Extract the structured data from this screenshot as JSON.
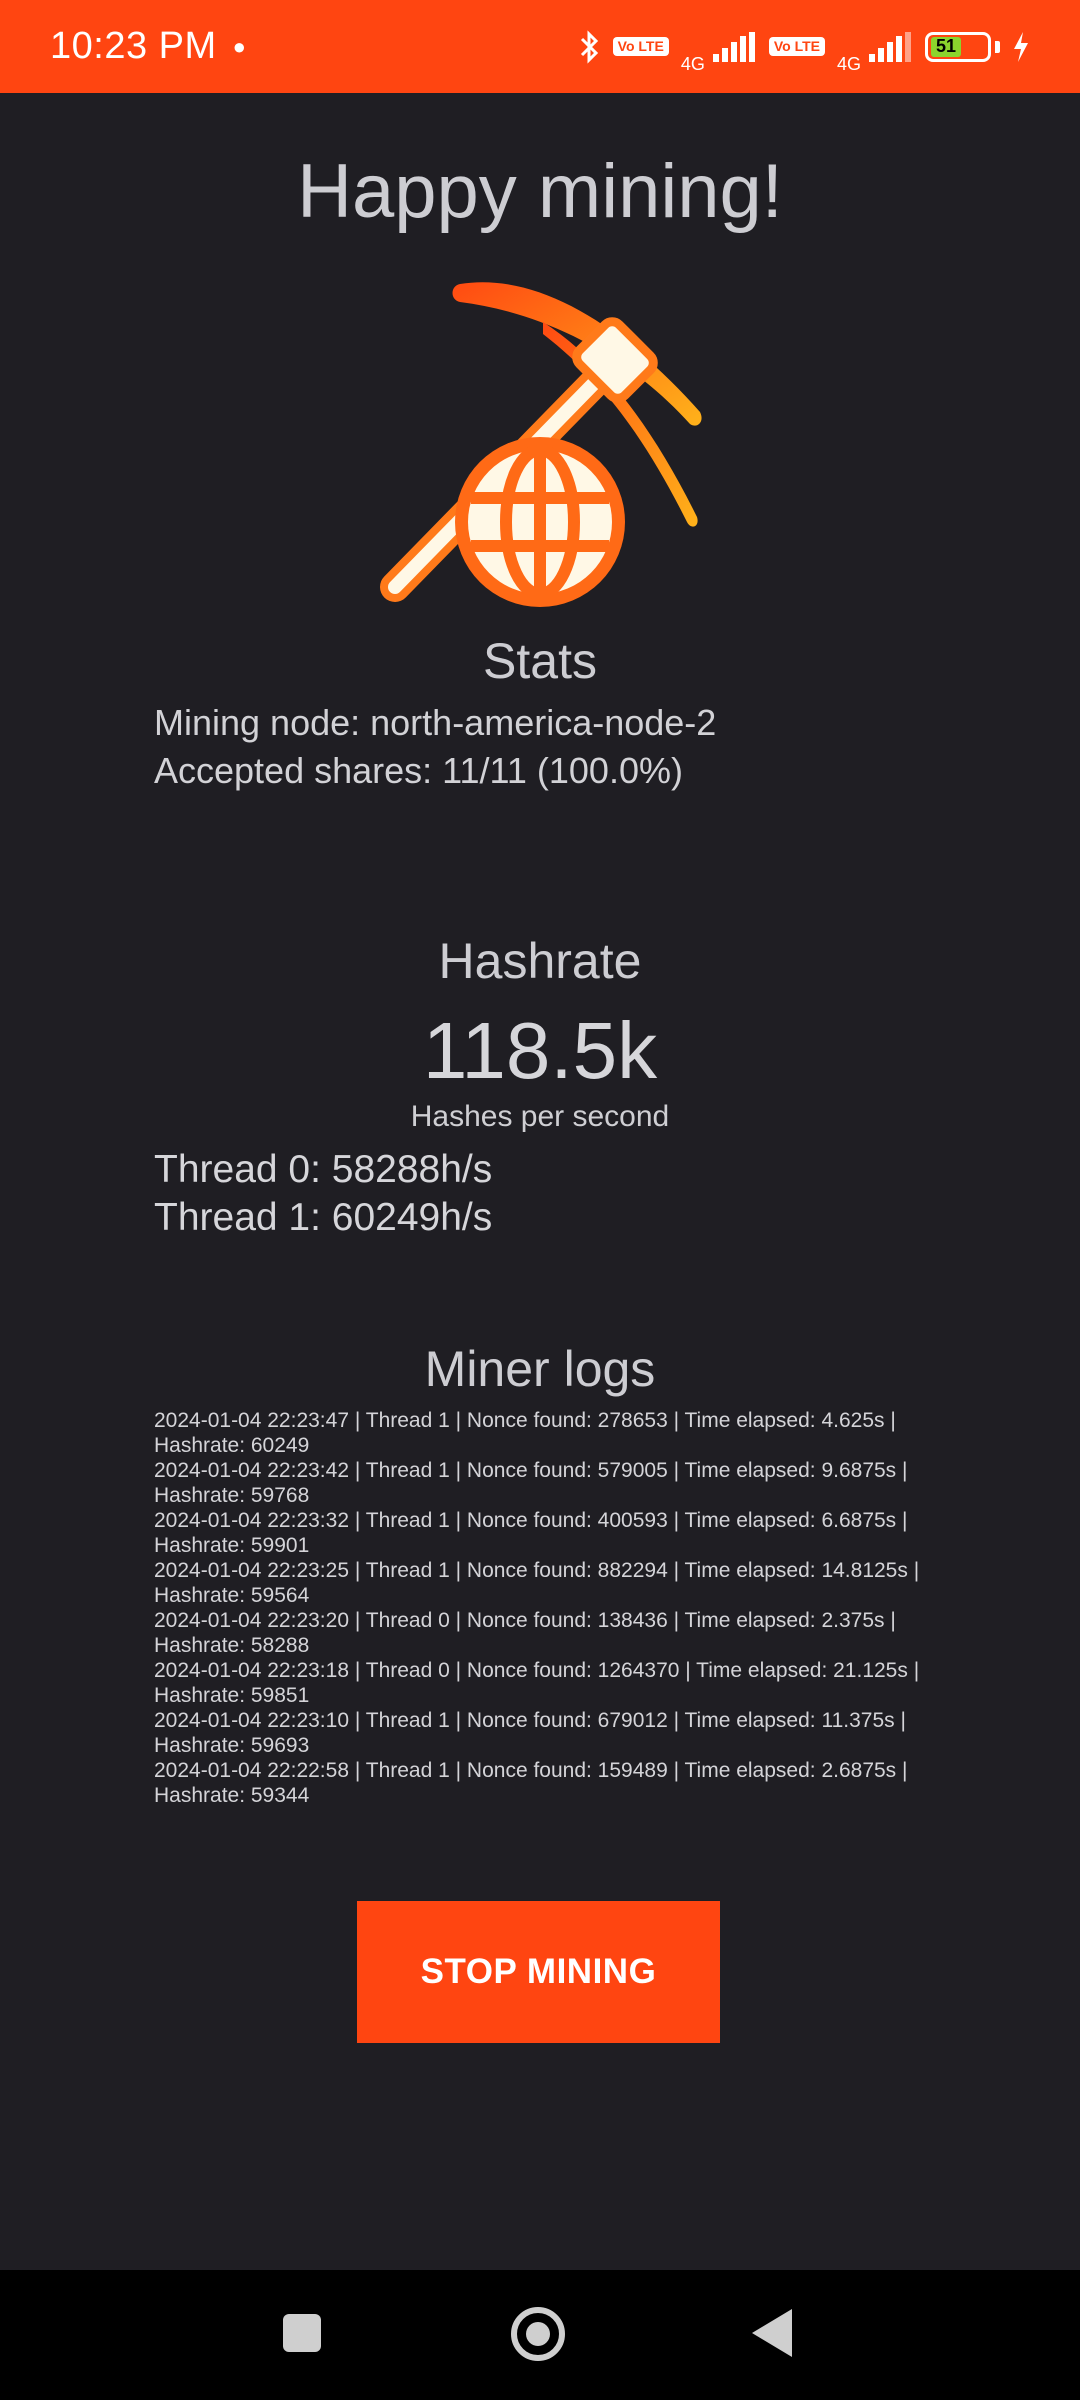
{
  "status_bar": {
    "time": "10:23 PM",
    "network_label_1": "4G",
    "network_label_2": "4G",
    "volte_label_1": "Vo LTE",
    "volte_label_2": "Vo LTE",
    "battery_level": "51"
  },
  "title": "Happy mining!",
  "stats": {
    "heading": "Stats",
    "mining_node": "Mining node: north-america-node-2",
    "accepted_shares": "Accepted shares: 11/11 (100.0%)"
  },
  "hashrate": {
    "heading": "Hashrate",
    "value": "118.5k",
    "unit": "Hashes per second",
    "threads": [
      "Thread 0: 58288h/s",
      "Thread 1: 60249h/s"
    ]
  },
  "logs": {
    "heading": "Miner logs",
    "entries": [
      "2024-01-04 22:23:47 | Thread 1 | Nonce found: 278653 | Time elapsed: 4.625s | Hashrate: 60249",
      "2024-01-04 22:23:42 | Thread 1 | Nonce found: 579005 | Time elapsed: 9.6875s | Hashrate: 59768",
      "2024-01-04 22:23:32 | Thread 1 | Nonce found: 400593 | Time elapsed: 6.6875s | Hashrate: 59901",
      "2024-01-04 22:23:25 | Thread 1 | Nonce found: 882294 | Time elapsed: 14.8125s | Hashrate: 59564",
      "2024-01-04 22:23:20 | Thread 0 | Nonce found: 138436 | Time elapsed: 2.375s | Hashrate: 58288",
      "2024-01-04 22:23:18 | Thread 0 | Nonce found: 1264370 | Time elapsed: 21.125s | Hashrate: 59851",
      "2024-01-04 22:23:10 | Thread 1 | Nonce found: 679012 | Time elapsed: 11.375s | Hashrate: 59693",
      "2024-01-04 22:22:58 | Thread 1 | Nonce found: 159489 | Time elapsed: 2.6875s | Hashrate: 59344"
    ]
  },
  "stop_button_label": "STOP MINING",
  "colors": {
    "accent": "#ff4511",
    "background": "#1f1e23",
    "logo_orange": "#ff7a1a",
    "logo_cream": "#fff8e6"
  },
  "icons": {
    "logo": "pickaxe-globe-icon",
    "nav_recents": "square-icon",
    "nav_home": "circle-home-icon",
    "nav_back": "triangle-back-icon"
  }
}
